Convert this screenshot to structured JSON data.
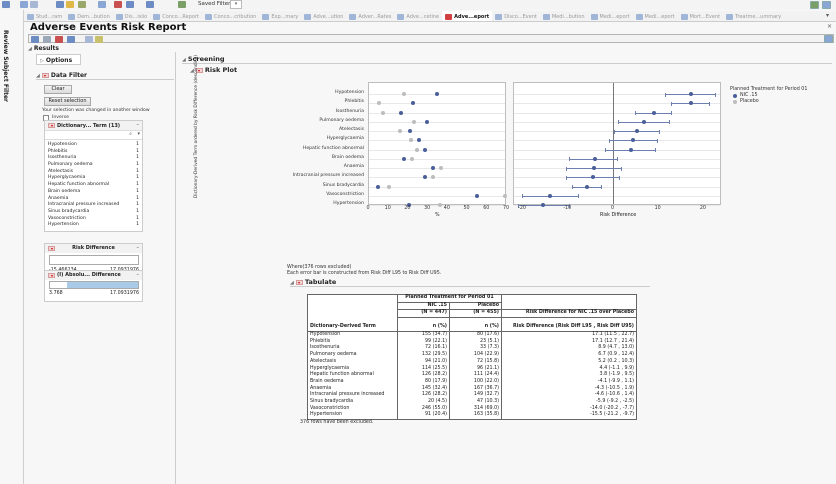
{
  "topbar": {
    "saved_filters_label": "Saved Filters:",
    "saved_filters_value": "",
    "icons": [
      "chart-icon",
      "table-icon",
      "list-icon",
      "graph-icon",
      "folder-icon",
      "report-icon",
      "distribution-icon",
      "flag-icon",
      "scatter-icon",
      "bar-icon",
      "filter-icon"
    ]
  },
  "side_tab": {
    "label": "Review Subject Filter"
  },
  "tabs": [
    {
      "label": "Stud...ram",
      "active": false
    },
    {
      "label": "Dem...bution",
      "active": false
    },
    {
      "label": "Dis...isiio",
      "active": false
    },
    {
      "label": "Conco...Report",
      "active": false
    },
    {
      "label": "Conco...cribution",
      "active": false
    },
    {
      "label": "Exp...mary",
      "active": false
    },
    {
      "label": "Adve...ution",
      "active": false
    },
    {
      "label": "Adver...Rates",
      "active": false
    },
    {
      "label": "Adve...cetine",
      "active": false
    },
    {
      "label": "Adve...eport",
      "active": true
    },
    {
      "label": "Disco...Event",
      "active": false
    },
    {
      "label": "Medi...bution",
      "active": false
    },
    {
      "label": "Medi...eport",
      "active": false
    },
    {
      "label": "Medi...eport",
      "active": false
    },
    {
      "label": "Mort...Event",
      "active": false
    },
    {
      "label": "Treatme...ummary",
      "active": false
    }
  ],
  "report": {
    "title": "Adverse Events Risk Report",
    "results_label": "Results",
    "options_label": "Options",
    "screening_label": "Screening",
    "risk_plot_label": "Risk Plot",
    "tabulate_label": "Tabulate"
  },
  "data_filter": {
    "title": "Data Filter",
    "clear_label": "Clear",
    "reset_label": "Reset selection",
    "changed_note": "Your selection was changed in another window",
    "inverse_label": "Inverse",
    "term_filter_title": "Dictionary... Term (13)",
    "terms": [
      {
        "name": "Hypotension",
        "count": "1"
      },
      {
        "name": "Phlebitis",
        "count": "1"
      },
      {
        "name": "Isosthenuria",
        "count": "1"
      },
      {
        "name": "Pulmonary oedema",
        "count": "1"
      },
      {
        "name": "Atelectasis",
        "count": "1"
      },
      {
        "name": "Hyperglycaemia",
        "count": "1"
      },
      {
        "name": "Hepatic function abnormal",
        "count": "1"
      },
      {
        "name": "Brain oedema",
        "count": "1"
      },
      {
        "name": "Anaemia",
        "count": "1"
      },
      {
        "name": "Intracranial pressure increased",
        "count": "1"
      },
      {
        "name": "Sinus bradycardia",
        "count": "1"
      },
      {
        "name": "Vasoconstriction",
        "count": "1"
      },
      {
        "name": "Hypertension",
        "count": "1"
      }
    ],
    "risk_diff": {
      "title": "Risk Difference",
      "min": "-15.466234",
      "max": "17.0931976"
    },
    "abs_diff": {
      "title": "(I) Absolu... Difference",
      "min": "3.768",
      "max": "17.0931976"
    }
  },
  "chart_data": {
    "type": "scatter",
    "title": "Risk Plot",
    "ylabel": "Dictionary-Derived Term ordered by Risk Difference (descending)",
    "categories": [
      "Hypotension",
      "Phlebitis",
      "Isosthenuria",
      "Pulmonary oedema",
      "Atelectasis",
      "Hyperglycaemia",
      "Hepatic function abnormal",
      "Brain oedema",
      "Anaemia",
      "Intracranial pressure increased",
      "Sinus bradycardia",
      "Vasoconstriction",
      "Hypertension"
    ],
    "panels": [
      {
        "xlabel": "%",
        "xlim": [
          0,
          70
        ],
        "xticks": [
          "0",
          "10",
          "20",
          "30",
          "40",
          "50",
          "60",
          "70"
        ],
        "series": [
          {
            "name": "NIC .15",
            "values": [
              34.7,
              22.1,
              16.1,
              29.5,
              21.0,
              25.5,
              28.2,
              17.9,
              32.4,
              28.2,
              4.5,
              55.0,
              20.4
            ]
          },
          {
            "name": "Placebo",
            "values": [
              17.6,
              5.1,
              7.3,
              22.9,
              15.8,
              21.1,
              24.4,
              22.0,
              36.7,
              32.7,
              10.3,
              69.0,
              35.8
            ]
          }
        ]
      },
      {
        "xlabel": "Risk Difference",
        "xlim": [
          -22,
          24
        ],
        "xticks": [
          "-20",
          "-10",
          "0",
          "10",
          "20"
        ],
        "series": [
          {
            "name": "Risk Difference",
            "values": [
              17.1,
              17.1,
              8.9,
              6.7,
              5.2,
              4.4,
              3.8,
              -4.1,
              -4.3,
              -4.6,
              -5.9,
              -14.0,
              -15.5
            ],
            "lower": [
              11.5,
              12.7,
              4.7,
              0.9,
              0.2,
              -1.1,
              -1.9,
              -9.9,
              -10.5,
              -10.6,
              -9.2,
              -20.2,
              -21.2
            ],
            "upper": [
              22.7,
              21.4,
              13.0,
              12.4,
              10.3,
              9.9,
              9.5,
              1.1,
              1.9,
              1.4,
              -2.5,
              -7.7,
              -9.7
            ]
          }
        ]
      }
    ],
    "legend": {
      "title": "Planned Treatment for Period 01",
      "entries": [
        "NIC .15",
        "Placebo"
      ],
      "colors": [
        "#4a5f9a",
        "#bdbdbd"
      ]
    }
  },
  "notes": {
    "where": "Where(376 rows excluded)",
    "error_bar": "Each error bar is constructed from Risk Diff L95 to Risk Diff U95.",
    "excluded": "376 rows have been excluded."
  },
  "table": {
    "group_header": "Planned Treatment for Period 01",
    "col1": "NIC .15",
    "col1_n": "(N = 447)",
    "col2": "Placebo",
    "col2_n": "(N = 455)",
    "rd_header": "Risk Difference for NIC .15 over Placebo",
    "term_header": "Dictionary-Derived Term",
    "n_header1": "n (%)",
    "n_header2": "n (%)",
    "rd_subheader": "Risk Difference (Risk Diff L95 , Risk Diff U95)",
    "rows": [
      {
        "term": "Hypotension",
        "nic": "155 (34.7)",
        "pla": "80 (17.6)",
        "rd": "17.1 (11.5 , 22.7)"
      },
      {
        "term": "Phlebitis",
        "nic": "99 (22.1)",
        "pla": "23 (5.1)",
        "rd": "17.1 (12.7 , 21.4)"
      },
      {
        "term": "Isosthenuria",
        "nic": "72 (16.1)",
        "pla": "33 (7.3)",
        "rd": "8.9 (4.7 , 13.0)"
      },
      {
        "term": "Pulmonary oedema",
        "nic": "132 (29.5)",
        "pla": "104 (22.9)",
        "rd": "6.7 (0.9 , 12.4)"
      },
      {
        "term": "Atelectasis",
        "nic": "94 (21.0)",
        "pla": "72 (15.8)",
        "rd": "5.2 (0.2 , 10.3)"
      },
      {
        "term": "Hyperglycaemia",
        "nic": "114 (25.5)",
        "pla": "96 (21.1)",
        "rd": "4.4 (-1.1 , 9.9)"
      },
      {
        "term": "Hepatic function abnormal",
        "nic": "126 (28.2)",
        "pla": "111 (24.4)",
        "rd": "3.8 (-1.9 , 9.5)"
      },
      {
        "term": "Brain oedema",
        "nic": "80 (17.9)",
        "pla": "100 (22.0)",
        "rd": "-4.1 (-9.9 , 1.1)"
      },
      {
        "term": "Anaemia",
        "nic": "145 (32.4)",
        "pla": "167 (36.7)",
        "rd": "-4.3 (-10.5 , 1.9)"
      },
      {
        "term": "Intracranial pressure increased",
        "nic": "126 (28.2)",
        "pla": "149 (32.7)",
        "rd": "-4.6 (-10.6 , 1.4)"
      },
      {
        "term": "Sinus bradycardia",
        "nic": "20 (4.5)",
        "pla": "47 (10.3)",
        "rd": "-5.9 (-9.2 , -2.5)"
      },
      {
        "term": "Vasoconstriction",
        "nic": "246 (55.0)",
        "pla": "314 (69.0)",
        "rd": "-14.0 (-20.2 , -7.7)"
      },
      {
        "term": "Hypertension",
        "nic": "91 (20.4)",
        "pla": "163 (35.8)",
        "rd": "-15.5 (-21.2 , -9.7)"
      }
    ]
  }
}
